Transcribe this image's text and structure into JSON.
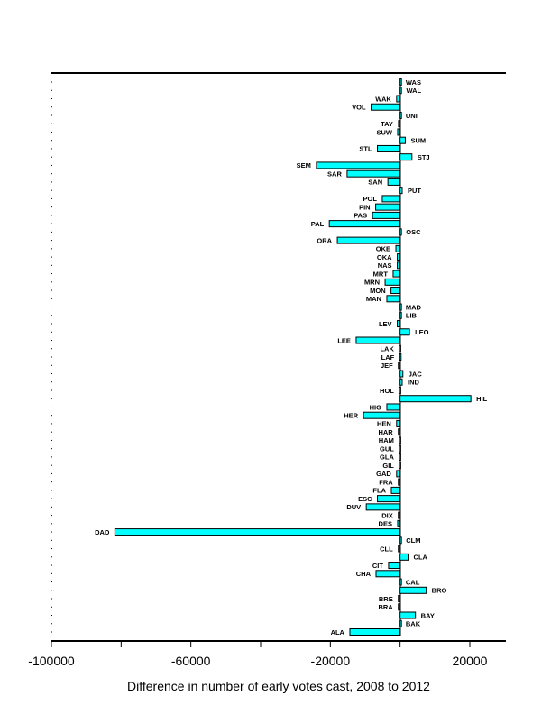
{
  "chart_data": {
    "type": "bar",
    "orientation": "horizontal",
    "title": "",
    "xlabel": "Difference in number of early votes cast, 2008 to 2012",
    "ylabel": "",
    "xlim": [
      -100000,
      30000
    ],
    "xticks": [
      -100000,
      -80000,
      -60000,
      -40000,
      -20000,
      0,
      20000
    ],
    "xtick_labels": [
      "-100000",
      "",
      "-60000",
      "",
      "-20000",
      "",
      "20000"
    ],
    "grid": false,
    "bar_color": "#00ffff",
    "categories": [
      "WAS",
      "WAL",
      "WAK",
      "VOL",
      "UNI",
      "TAY",
      "SUW",
      "SUM",
      "STL",
      "STJ",
      "SEM",
      "SAR",
      "SAN",
      "PUT",
      "POL",
      "PIN",
      "PAS",
      "PAL",
      "OSC",
      "ORA",
      "OKE",
      "OKA",
      "NAS",
      "MRT",
      "MRN",
      "MON",
      "MAN",
      "MAD",
      "LIB",
      "LEV",
      "LEO",
      "LEE",
      "LAK",
      "LAF",
      "JEF",
      "JAC",
      "IND",
      "HOL",
      "HIL",
      "HIG",
      "HER",
      "HEN",
      "HAR",
      "HAM",
      "GUL",
      "GLA",
      "GIL",
      "GAD",
      "FRA",
      "FLA",
      "ESC",
      "DUV",
      "DIX",
      "DES",
      "DAD",
      "CLM",
      "CLL",
      "CLA",
      "CIT",
      "CHA",
      "CAL",
      "BRO",
      "BRE",
      "BRA",
      "BAY",
      "BAK",
      "ALA"
    ],
    "values": [
      50,
      200,
      -1000,
      -8300,
      50,
      -450,
      -700,
      1500,
      -6500,
      3400,
      -24000,
      -15200,
      -3500,
      600,
      -5100,
      -7000,
      -7900,
      -20300,
      150,
      -18000,
      -1200,
      -800,
      -800,
      -2000,
      -4300,
      -2600,
      -3800,
      50,
      50,
      -800,
      2700,
      -12600,
      -200,
      -100,
      -500,
      800,
      600,
      -200,
      20300,
      -3800,
      -10500,
      -1000,
      -500,
      -200,
      -200,
      -200,
      -200,
      -1000,
      -500,
      -2500,
      -6500,
      -9700,
      -500,
      -700,
      -81800,
      150,
      -500,
      2300,
      -3300,
      -6900,
      50,
      7500,
      -500,
      -500,
      4400,
      50,
      -14400
    ]
  }
}
